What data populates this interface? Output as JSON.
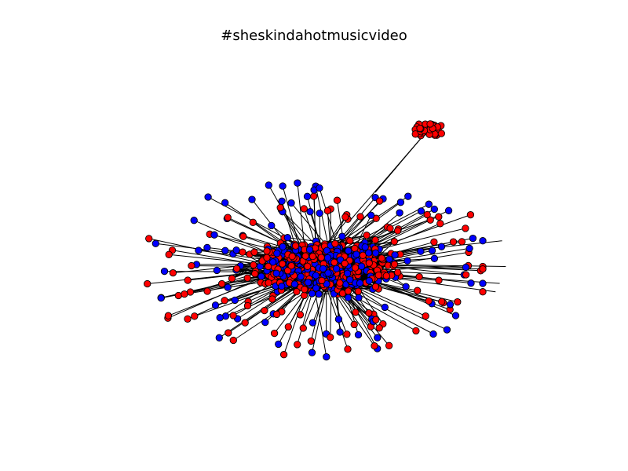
{
  "title": "#sheskindahotmusicvideo",
  "colors": {
    "background": "#ffffff",
    "node_red": "#ff0000",
    "node_blue": "#0000ff",
    "edge": "#000000",
    "node_outline": "#000000"
  }
}
